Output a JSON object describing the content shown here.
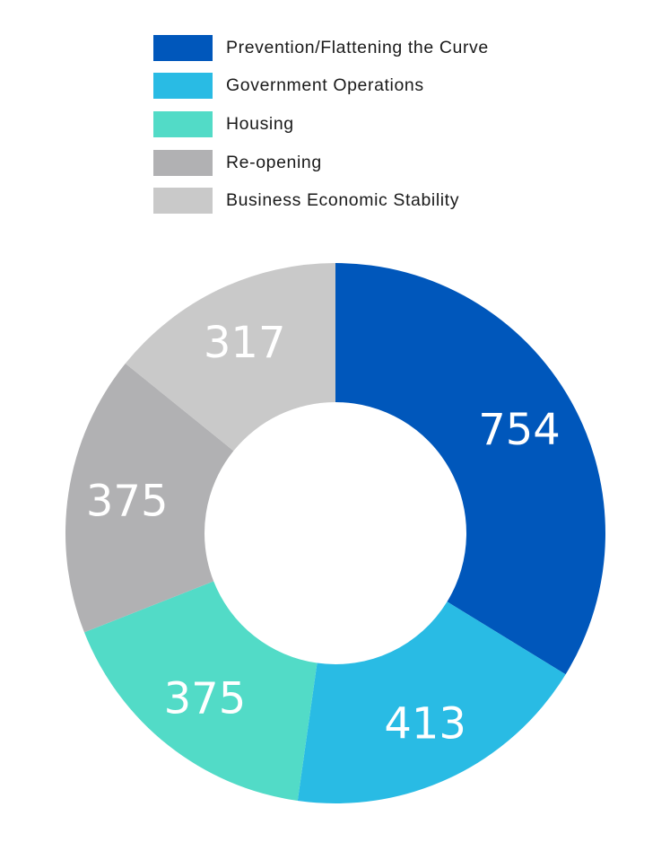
{
  "chart_data": {
    "type": "pie",
    "style": "donut",
    "categories": [
      "Prevention/Flattening the Curve",
      "Government Operations",
      "Housing",
      "Re-opening",
      "Business Economic Stability"
    ],
    "values": [
      754,
      413,
      375,
      375,
      317
    ],
    "value_labels": [
      "754",
      "413",
      "375",
      "375",
      "317"
    ],
    "colors": [
      "#0057BB",
      "#29BBE4",
      "#52DBC7",
      "#B1B1B3",
      "#C9C9C9"
    ],
    "legend": "top",
    "start": "top, clockwise"
  }
}
